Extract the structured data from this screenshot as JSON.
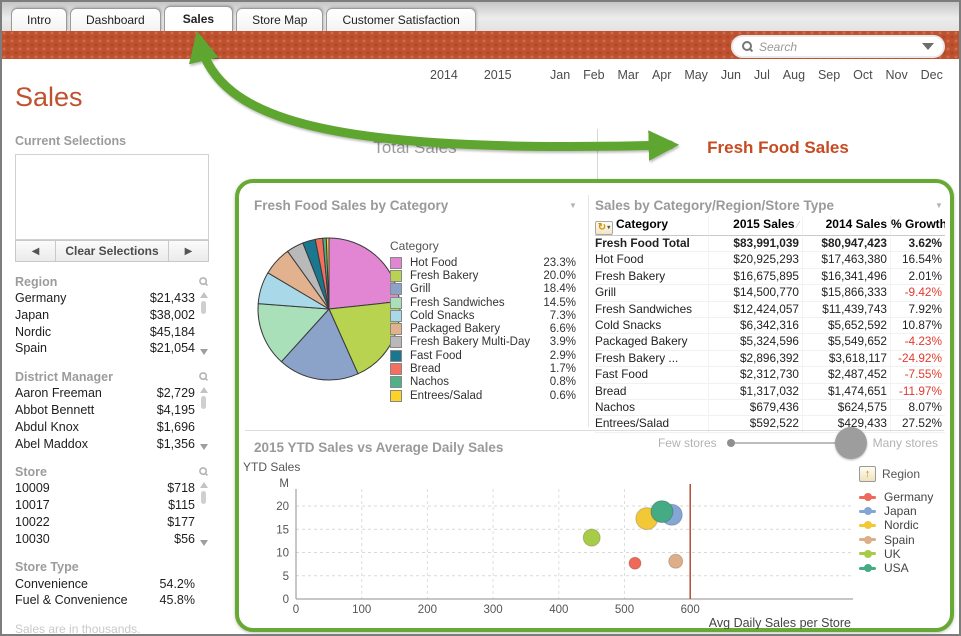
{
  "colors": {
    "accent_orange": "#c0512f",
    "active_view_orange": "#c74b22",
    "annotation_green": "#5ea62f",
    "negative_red": "#e23a2e",
    "panel_border_green": "#68a834"
  },
  "tabs": [
    {
      "label": "Intro",
      "active": false
    },
    {
      "label": "Dashboard",
      "active": false
    },
    {
      "label": "Sales",
      "active": true
    },
    {
      "label": "Store Map",
      "active": false
    },
    {
      "label": "Customer Satisfaction",
      "active": false
    }
  ],
  "search": {
    "placeholder": "Search"
  },
  "filters": {
    "years": [
      "2014",
      "2015"
    ],
    "months": [
      "Jan",
      "Feb",
      "Mar",
      "Apr",
      "May",
      "Jun",
      "Jul",
      "Aug",
      "Sep",
      "Oct",
      "Nov",
      "Dec"
    ]
  },
  "page_title": "Sales",
  "sidebar": {
    "current_selections": {
      "title": "Current Selections",
      "clear_label": "Clear Selections"
    },
    "lists": [
      {
        "title": "Region",
        "searchable": true,
        "scrollbar": true,
        "items": [
          {
            "name": "Germany",
            "value": "$21,433"
          },
          {
            "name": "Japan",
            "value": "$38,002"
          },
          {
            "name": "Nordic",
            "value": "$45,184"
          },
          {
            "name": "Spain",
            "value": "$21,054"
          }
        ]
      },
      {
        "title": "District Manager",
        "searchable": true,
        "scrollbar": true,
        "items": [
          {
            "name": "Aaron Freeman",
            "value": "$2,729"
          },
          {
            "name": "Abbot Bennett",
            "value": "$4,195"
          },
          {
            "name": "Abdul Knox",
            "value": "$1,696"
          },
          {
            "name": "Abel Maddox",
            "value": "$1,356"
          }
        ]
      },
      {
        "title": "Store",
        "searchable": true,
        "scrollbar": true,
        "items": [
          {
            "name": "10009",
            "value": "$718"
          },
          {
            "name": "10017",
            "value": "$115"
          },
          {
            "name": "10022",
            "value": "$177"
          },
          {
            "name": "10030",
            "value": "$56"
          }
        ]
      },
      {
        "title": "Store Type",
        "searchable": false,
        "scrollbar": false,
        "items": [
          {
            "name": "Convenience",
            "value": "54.2%"
          },
          {
            "name": "Fuel & Convenience",
            "value": "45.8%"
          }
        ]
      }
    ],
    "footnote": "Sales are in thousands."
  },
  "main": {
    "views": [
      {
        "label": "Total Sales",
        "active": false
      },
      {
        "label": "Fresh Food Sales",
        "active": true
      }
    ]
  },
  "chart_data": [
    {
      "type": "pie",
      "title": "Fresh Food Sales by Category",
      "legend_title": "Category",
      "slices": [
        {
          "label": "Hot Food",
          "pct": 23.3,
          "color": "#e285d2"
        },
        {
          "label": "Fresh Bakery",
          "pct": 20.0,
          "color": "#b7d34f"
        },
        {
          "label": "Grill",
          "pct": 18.4,
          "color": "#8ba3c9"
        },
        {
          "label": "Fresh Sandwiches",
          "pct": 14.5,
          "color": "#a9e0b9"
        },
        {
          "label": "Cold Snacks",
          "pct": 7.3,
          "color": "#a9d9e8"
        },
        {
          "label": "Packaged Bakery",
          "pct": 6.6,
          "color": "#e2b18d"
        },
        {
          "label": "Fresh Bakery Multi-Day",
          "pct": 3.9,
          "color": "#b9b9b9"
        },
        {
          "label": "Fast Food",
          "pct": 2.9,
          "color": "#1b768f"
        },
        {
          "label": "Bread",
          "pct": 1.7,
          "color": "#f4705e"
        },
        {
          "label": "Nachos",
          "pct": 0.8,
          "color": "#4fb286"
        },
        {
          "label": "Entrees/Salad",
          "pct": 0.6,
          "color": "#ffd226"
        }
      ]
    },
    {
      "type": "table",
      "title": "Sales by Category/Region/Store Type",
      "columns": [
        "Category",
        "2015 Sales",
        "2014 Sales",
        "% Growth"
      ],
      "rows": [
        {
          "category": "Fresh Food Total",
          "sales_2015": "$83,991,039",
          "sales_2014": "$80,947,423",
          "growth": "3.62%",
          "bold": true
        },
        {
          "category": "Hot Food",
          "sales_2015": "$20,925,293",
          "sales_2014": "$17,463,380",
          "growth": "16.54%"
        },
        {
          "category": "Fresh Bakery",
          "sales_2015": "$16,675,895",
          "sales_2014": "$16,341,496",
          "growth": "2.01%"
        },
        {
          "category": "Grill",
          "sales_2015": "$14,500,770",
          "sales_2014": "$15,866,333",
          "growth": "-9.42%"
        },
        {
          "category": "Fresh Sandwiches",
          "sales_2015": "$12,424,057",
          "sales_2014": "$11,439,743",
          "growth": "7.92%"
        },
        {
          "category": "Cold Snacks",
          "sales_2015": "$6,342,316",
          "sales_2014": "$5,652,592",
          "growth": "10.87%"
        },
        {
          "category": "Packaged Bakery",
          "sales_2015": "$5,324,596",
          "sales_2014": "$5,549,652",
          "growth": "-4.23%"
        },
        {
          "category": "Fresh Bakery ...",
          "sales_2015": "$2,896,392",
          "sales_2014": "$3,618,117",
          "growth": "-24.92%"
        },
        {
          "category": "Fast Food",
          "sales_2015": "$2,312,730",
          "sales_2014": "$2,487,452",
          "growth": "-7.55%"
        },
        {
          "category": "Bread",
          "sales_2015": "$1,317,032",
          "sales_2014": "$1,474,651",
          "growth": "-11.97%"
        },
        {
          "category": "Nachos",
          "sales_2015": "$679,436",
          "sales_2014": "$624,575",
          "growth": "8.07%"
        },
        {
          "category": "Entrees/Salad",
          "sales_2015": "$592,522",
          "sales_2014": "$429,433",
          "growth": "27.52%"
        }
      ]
    },
    {
      "type": "scatter",
      "title": "2015 YTD Sales vs Average Daily Sales",
      "xlabel": "Avg Daily Sales per Store",
      "ylabel": "YTD Sales",
      "y_unit": "M",
      "x_ticks": [
        0,
        100,
        200,
        300,
        400,
        500,
        600
      ],
      "y_ticks": [
        0,
        5,
        10,
        15,
        20
      ],
      "xlim": [
        0,
        845
      ],
      "ylim": [
        0,
        23
      ],
      "ref_line_x": 600,
      "grid": true,
      "legend_title": "Region",
      "slider": {
        "left_label": "Few stores",
        "right_label": "Many stores"
      },
      "points": [
        {
          "region": "Germany",
          "color": "#f0685a",
          "x": 516,
          "y": 7.7,
          "size": 6
        },
        {
          "region": "Japan",
          "color": "#83a6d4",
          "x": 572,
          "y": 18.1,
          "size": 10.5
        },
        {
          "region": "Nordic",
          "color": "#f3c836",
          "x": 534,
          "y": 17.3,
          "size": 11
        },
        {
          "region": "Spain",
          "color": "#ddae88",
          "x": 578,
          "y": 8.1,
          "size": 7
        },
        {
          "region": "UK",
          "color": "#a8cc48",
          "x": 450,
          "y": 13.2,
          "size": 8.5
        },
        {
          "region": "USA",
          "color": "#45ab85",
          "x": 557,
          "y": 18.8,
          "size": 11
        }
      ]
    }
  ]
}
